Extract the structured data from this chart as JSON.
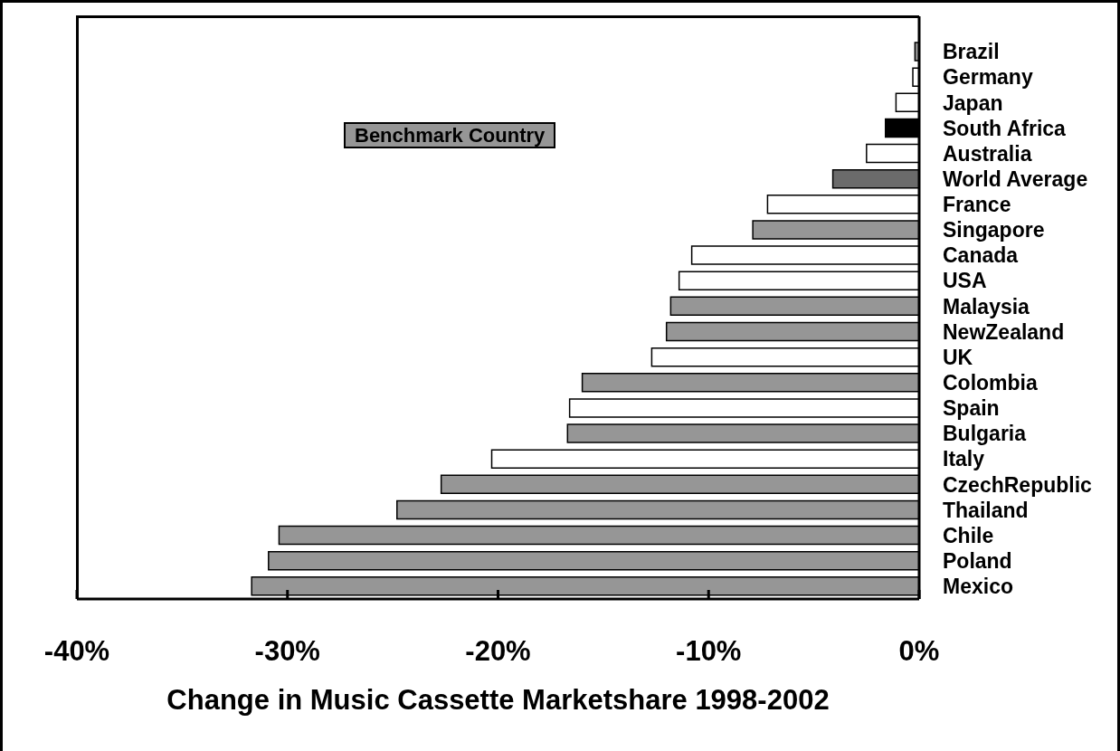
{
  "chart_data": {
    "type": "bar",
    "orientation": "horizontal",
    "xlabel": "Change in Music Cassette Marketshare 1998-2002",
    "categories": [
      "Brazil",
      "Germany",
      "Japan",
      "South Africa",
      "Australia",
      "World Average",
      "France",
      "Singapore",
      "Canada",
      "USA",
      "Malaysia",
      "NewZealand",
      "UK",
      "Colombia",
      "Spain",
      "Bulgaria",
      "Italy",
      "CzechRepublic",
      "Thailand",
      "Chile",
      "Poland",
      "Mexico"
    ],
    "series": [
      {
        "name": "Benchmark Country",
        "color": "#969696",
        "values": [
          -0.2,
          null,
          null,
          null,
          null,
          null,
          null,
          -7.9,
          null,
          null,
          -11.8,
          -12.0,
          null,
          -16.0,
          null,
          -16.7,
          null,
          -22.7,
          -24.8,
          -30.4,
          -30.9,
          -31.7
        ]
      },
      {
        "colors": [
          null,
          "#ffffff",
          "#ffffff",
          "#000000",
          "#ffffff",
          "#6b6b6b",
          "#ffffff",
          null,
          "#ffffff",
          "#ffffff",
          null,
          null,
          "#ffffff",
          null,
          "#ffffff",
          null,
          "#ffffff",
          null,
          null,
          null,
          null,
          null
        ],
        "values": [
          null,
          -0.3,
          -1.1,
          -1.6,
          -2.5,
          -4.1,
          -7.2,
          null,
          -10.8,
          -11.4,
          null,
          null,
          -12.7,
          null,
          -16.6,
          null,
          -20.3,
          null,
          null,
          null,
          null,
          null
        ]
      }
    ],
    "xlim": [
      -40,
      0
    ],
    "xticks": [
      {
        "value": -40,
        "label": "-40%"
      },
      {
        "value": -30,
        "label": "-30%"
      },
      {
        "value": -20,
        "label": "-20%"
      },
      {
        "value": -10,
        "label": "-10%"
      },
      {
        "value": 0,
        "label": "0%"
      }
    ],
    "legend": "top left"
  }
}
